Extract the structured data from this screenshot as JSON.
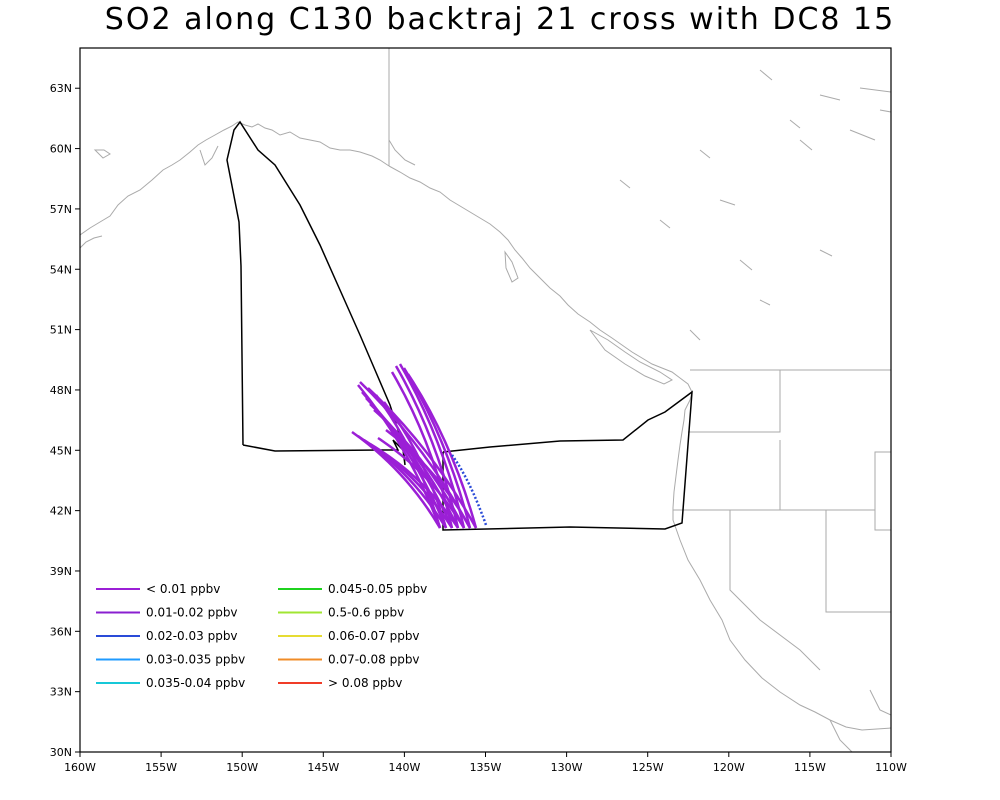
{
  "title": "SO2 along C130 backtraj 21 cross with DC8 15",
  "map": {
    "lon_range": [
      -160,
      -110
    ],
    "lat_range": [
      30,
      65
    ],
    "x_ticks": [
      "160W",
      "155W",
      "150W",
      "145W",
      "140W",
      "135W",
      "130W",
      "125W",
      "120W",
      "115W",
      "110W"
    ],
    "y_ticks": [
      "30N",
      "33N",
      "36N",
      "39N",
      "42N",
      "45N",
      "48N",
      "51N",
      "54N",
      "57N",
      "60N",
      "63N"
    ]
  },
  "legend": [
    {
      "label": "< 0.01 ppbv",
      "color": "#9b1fd6"
    },
    {
      "label": "0.01-0.02 ppbv",
      "color": "#8a1fd0"
    },
    {
      "label": "0.02-0.03 ppbv",
      "color": "#2a4bd8"
    },
    {
      "label": "0.03-0.035 ppbv",
      "color": "#1f9bff"
    },
    {
      "label": "0.035-0.04 ppbv",
      "color": "#17c8d8"
    },
    {
      "label": "0.045-0.05 ppbv",
      "color": "#1fd21f"
    },
    {
      "label": "0.5-0.6 ppbv",
      "color": "#a0e632"
    },
    {
      "label": "0.06-0.07 ppbv",
      "color": "#e6dc32"
    },
    {
      "label": "0.07-0.08 ppbv",
      "color": "#f08c28"
    },
    {
      "label": "> 0.08 ppbv",
      "color": "#f03c28"
    }
  ],
  "colors": {
    "coast": "#aaaaaa",
    "flight": "#000000",
    "traj_main": "#9b1fd6",
    "traj_blue": "#2a4bd8"
  }
}
